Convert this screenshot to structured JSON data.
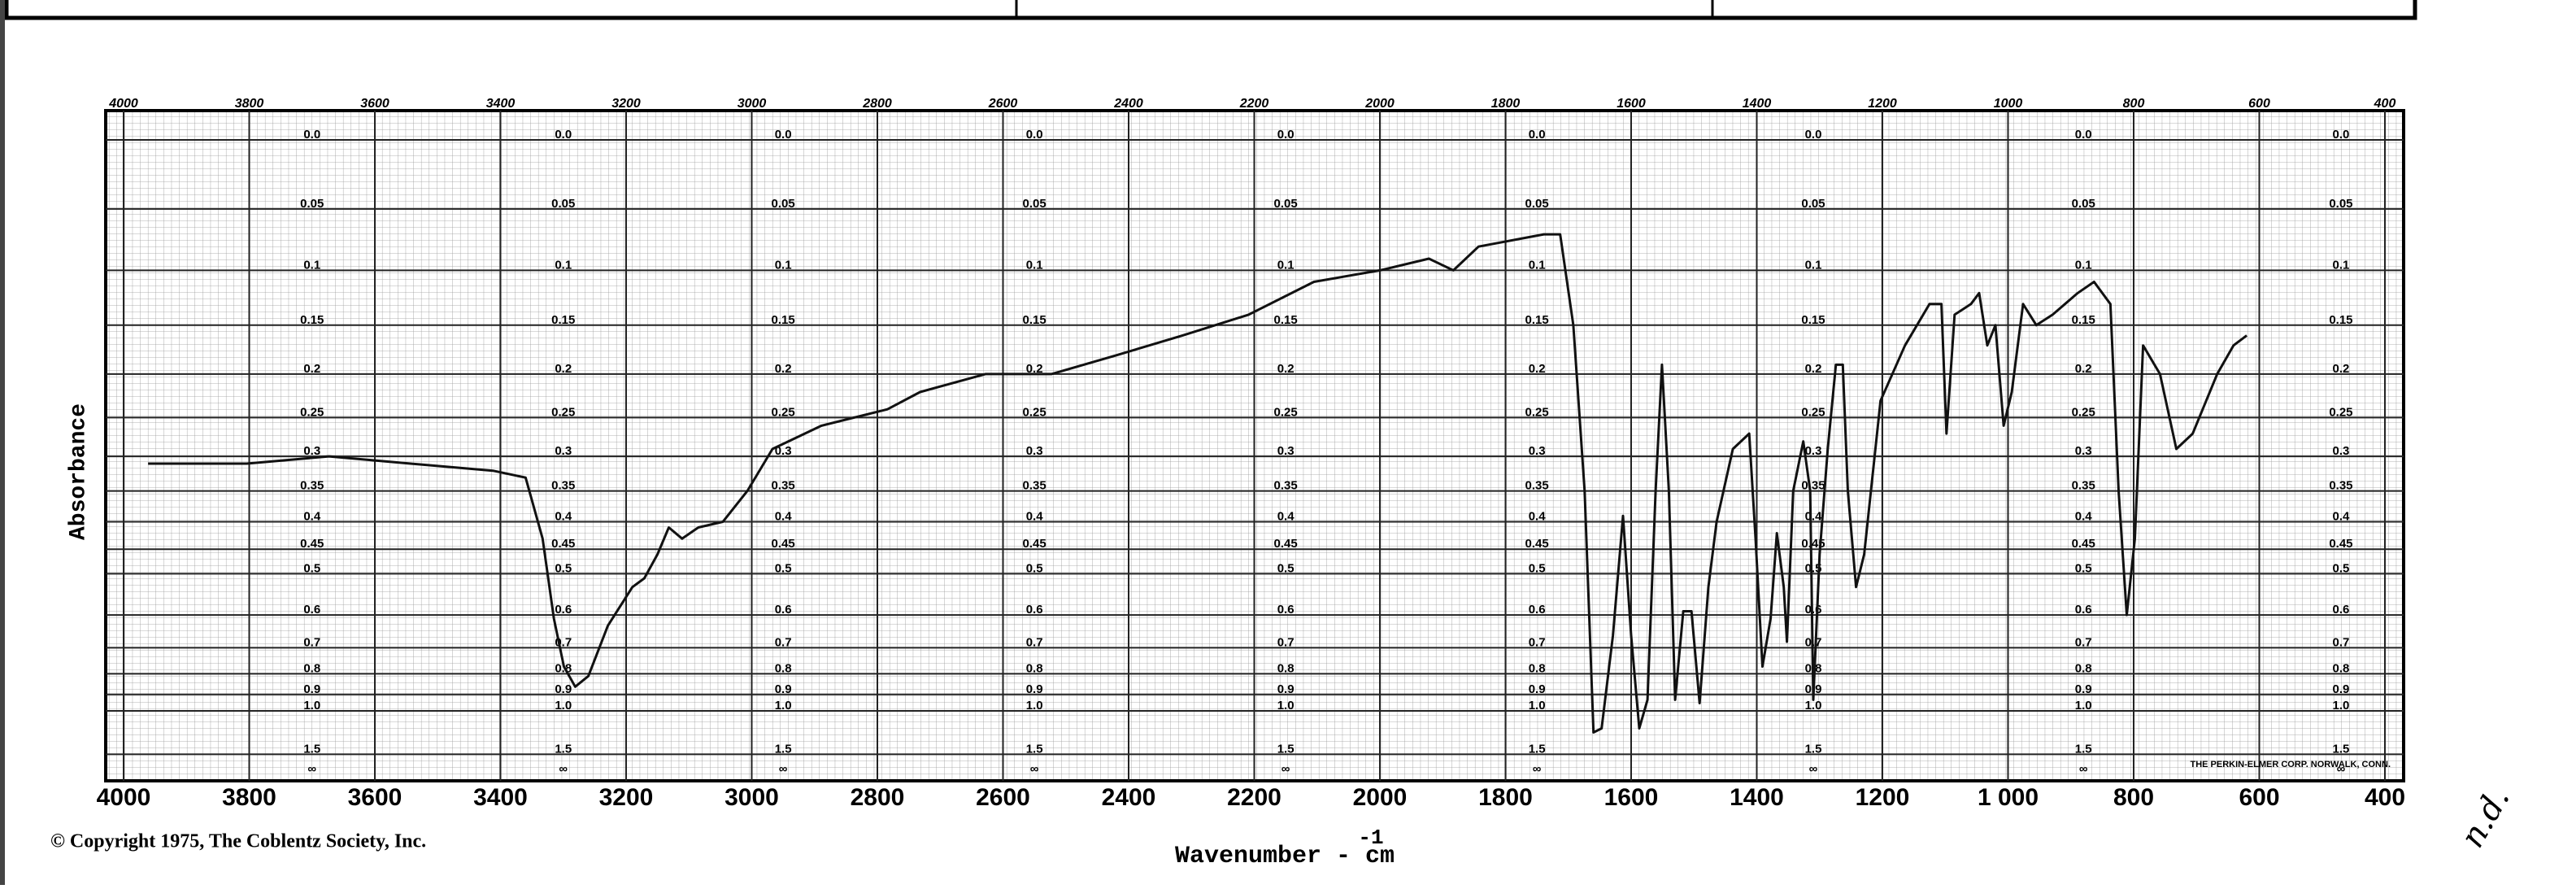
{
  "chart_data": {
    "type": "line",
    "y_label": "Absorbance",
    "x_label": "Wavenumber - cm",
    "x_label_exponent": "-1",
    "copyright": "© Copyright 1975, The Coblentz Society, Inc.",
    "maker": "THE PERKIN-ELMER CORP. NORWALK, CONN.",
    "annotation": "n.d.",
    "y_end_label": "∞",
    "xlim": [
      4000,
      400
    ],
    "xticks": [
      4000,
      3800,
      3600,
      3400,
      3200,
      3000,
      2800,
      2600,
      2400,
      2200,
      2000,
      1800,
      1600,
      1400,
      1200,
      {
        "value": 1000,
        "label": "1 000"
      },
      800,
      600,
      400
    ],
    "x2ticks": [
      4000,
      3800,
      3600,
      3400,
      3200,
      3000,
      2800,
      2600,
      2400,
      2200,
      2000,
      1800,
      1600,
      1400,
      1200,
      1000,
      800,
      600,
      400
    ],
    "ylim": [
      0,
      1.5
    ],
    "yscale": "transmittance",
    "yticks": [
      {
        "value": 0,
        "label": "0.0"
      },
      0.05,
      0.1,
      0.15,
      0.2,
      0.25,
      0.3,
      0.35,
      0.4,
      0.45,
      0.5,
      0.6,
      0.7,
      0.8,
      0.9,
      {
        "value": 1,
        "label": "1.0"
      },
      1.5
    ],
    "grid": true,
    "color": "#111111",
    "x": [
      3961,
      3804,
      3673,
      3543,
      3412,
      3360,
      3333,
      3315,
      3299,
      3281,
      3260,
      3229,
      3190,
      3171,
      3150,
      3132,
      3111,
      3085,
      3046,
      3007,
      2967,
      2889,
      2784,
      2732,
      2628,
      2523,
      2419,
      2314,
      2209,
      2105,
      2000,
      1922,
      1883,
      1843,
      1739,
      1713,
      1692,
      1674,
      1660,
      1647,
      1629,
      1613,
      1600,
      1587,
      1574,
      1561,
      1551,
      1540,
      1530,
      1517,
      1504,
      1491,
      1477,
      1464,
      1438,
      1412,
      1402,
      1391,
      1378,
      1368,
      1357,
      1352,
      1342,
      1326,
      1315,
      1310,
      1300,
      1287,
      1274,
      1263,
      1255,
      1242,
      1229,
      1203,
      1164,
      1125,
      1106,
      1098,
      1085,
      1059,
      1046,
      1033,
      1020,
      1007,
      994,
      976,
      955,
      929,
      889,
      863,
      837,
      824,
      811,
      798,
      785,
      758,
      732,
      706,
      667,
      641,
      620
    ],
    "values": [
      0.31,
      0.31,
      0.3,
      0.31,
      0.32,
      0.33,
      0.43,
      0.61,
      0.77,
      0.86,
      0.81,
      0.63,
      0.53,
      0.51,
      0.46,
      0.41,
      0.43,
      0.41,
      0.4,
      0.35,
      0.29,
      0.26,
      0.24,
      0.22,
      0.2,
      0.2,
      0.18,
      0.16,
      0.14,
      0.11,
      0.1,
      0.09,
      0.1,
      0.08,
      0.07,
      0.07,
      0.15,
      0.35,
      1.18,
      1.14,
      0.66,
      0.39,
      0.66,
      1.14,
      0.93,
      0.35,
      0.19,
      0.35,
      0.93,
      0.59,
      0.59,
      0.95,
      0.53,
      0.4,
      0.29,
      0.27,
      0.43,
      0.77,
      0.61,
      0.42,
      0.53,
      0.68,
      0.35,
      0.28,
      0.35,
      0.93,
      0.46,
      0.29,
      0.19,
      0.19,
      0.35,
      0.53,
      0.46,
      0.23,
      0.17,
      0.13,
      0.13,
      0.27,
      0.14,
      0.13,
      0.12,
      0.17,
      0.15,
      0.26,
      0.22,
      0.13,
      0.15,
      0.14,
      0.12,
      0.11,
      0.13,
      0.35,
      0.6,
      0.43,
      0.17,
      0.2,
      0.29,
      0.27,
      0.2,
      0.17,
      0.16
    ]
  }
}
